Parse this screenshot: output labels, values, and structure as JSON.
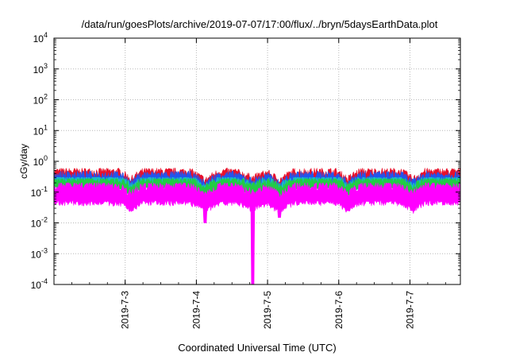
{
  "chart_data": {
    "type": "area",
    "title": "/data/run/goesPlots/archive/2019-07-07/17:00/flux/../bryn/5daysEarthData.plot",
    "xlabel": "Coordinated Universal Time (UTC)",
    "ylabel": "cGy/day",
    "yscale": "log",
    "ylim": [
      0.0001,
      10000
    ],
    "xlim_days": [
      2019.0702,
      2019.0708
    ],
    "y_ticks": [
      {
        "base": "10",
        "exp": "-4"
      },
      {
        "base": "10",
        "exp": "-3"
      },
      {
        "base": "10",
        "exp": "-2"
      },
      {
        "base": "10",
        "exp": "-1"
      },
      {
        "base": "10",
        "exp": "0"
      },
      {
        "base": "10",
        "exp": "1"
      },
      {
        "base": "10",
        "exp": "2"
      },
      {
        "base": "10",
        "exp": "3"
      },
      {
        "base": "10",
        "exp": "4"
      }
    ],
    "x_ticks": [
      "2019-7-3",
      "2019-7-4",
      "2019-7-5",
      "2019-7-6",
      "2019-7-7"
    ],
    "x_range": {
      "start": "2019-07-02 00:00",
      "end": "2019-07-07 17:00"
    },
    "x_tick_dates": [
      "2019-07-03 00:00",
      "2019-07-04 00:00",
      "2019-07-05 00:00",
      "2019-07-06 00:00",
      "2019-07-07 00:00"
    ],
    "grid": true,
    "series": [
      {
        "color": "#e8102a",
        "typical_value": 0.35,
        "range": [
          0.2,
          0.6
        ]
      },
      {
        "color": "#2255ee",
        "typical_value": 0.28,
        "range": [
          0.15,
          0.5
        ]
      },
      {
        "color": "#1ab8c8",
        "typical_value": 0.22,
        "range": [
          0.14,
          0.3
        ]
      },
      {
        "color": "#22cc44",
        "typical_value": 0.2,
        "range": [
          0.13,
          0.27
        ]
      },
      {
        "color": "#ff00ff",
        "typical_value": 0.12,
        "range": [
          0.0001,
          0.2
        ]
      }
    ],
    "dips": [
      {
        "time": "2019-07-03 02:00",
        "depth": "moderate"
      },
      {
        "time": "2019-07-04 03:00",
        "depth": "deep",
        "min": 0.01
      },
      {
        "time": "2019-07-04 19:00",
        "depth": "deepest",
        "min": 0.0001
      },
      {
        "time": "2019-07-05 04:00",
        "depth": "deep",
        "min": 0.015
      },
      {
        "time": "2019-07-06 03:00",
        "depth": "moderate"
      },
      {
        "time": "2019-07-07 01:00",
        "depth": "moderate"
      }
    ]
  }
}
